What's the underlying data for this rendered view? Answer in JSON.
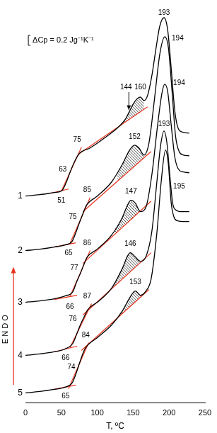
{
  "chart_data": {
    "type": "line",
    "x_label": "T, ºC",
    "y_label": "E N D O",
    "xlim": [
      0,
      250
    ],
    "xticks": [
      0,
      50,
      100,
      150,
      200,
      250
    ],
    "ylim": [
      0,
      565
    ],
    "tick_labels": "x",
    "grid": false,
    "tangent_color": "#e8341c",
    "scale_bar": {
      "text": "ΔCp = 0.2 Jg⁻¹K⁻¹",
      "x": 4,
      "y": [
        505,
        519
      ]
    },
    "series": [
      {
        "name": "1",
        "color": "#000000",
        "x": [
          0,
          20,
          40,
          51,
          57,
          63,
          69,
          75,
          90,
          110,
          130,
          140,
          144,
          150,
          155,
          160,
          165,
          170,
          176,
          182,
          187,
          193,
          198,
          203,
          208,
          213,
          220,
          228
        ],
        "values": [
          292,
          294,
          297,
          300,
          312,
          328,
          342,
          352,
          360,
          374,
          390,
          402,
          410,
          422,
          429,
          432,
          427,
          434,
          462,
          502,
          532,
          544,
          527,
          472,
          412,
          387,
          382,
          381
        ],
        "tangents": [
          [
            [
              35,
              296
            ],
            [
              60,
              302
            ]
          ],
          [
            [
              50,
              299
            ],
            [
              78,
              361
            ]
          ],
          [
            [
              75,
              352
            ],
            [
              170,
              418
            ]
          ]
        ],
        "hatch": [
          130,
          165
        ]
      },
      {
        "name": "2",
        "color": "#000000",
        "x": [
          0,
          20,
          40,
          55,
          65,
          70,
          75,
          80,
          85,
          100,
          120,
          135,
          145,
          152,
          158,
          165,
          172,
          180,
          187,
          194,
          199,
          204,
          209,
          214,
          220,
          228
        ],
        "values": [
          215,
          217,
          220,
          223,
          228,
          240,
          254,
          267,
          279,
          292,
          312,
          337,
          357,
          364,
          360,
          350,
          367,
          432,
          492,
          517,
          502,
          442,
          377,
          355,
          350,
          349
        ],
        "tangents": [
          [
            [
              40,
              220
            ],
            [
              70,
              226
            ]
          ],
          [
            [
              62,
              225
            ],
            [
              90,
              290
            ]
          ],
          [
            [
              80,
              270
            ],
            [
              175,
              355
            ]
          ]
        ],
        "hatch": [
          128,
          165
        ]
      },
      {
        "name": "3",
        "color": "#000000",
        "x": [
          0,
          20,
          40,
          55,
          66,
          71,
          77,
          82,
          86,
          100,
          120,
          135,
          142,
          147,
          153,
          160,
          168,
          176,
          184,
          190,
          194,
          198,
          203,
          208,
          213,
          220,
          228
        ],
        "values": [
          142,
          144,
          147,
          151,
          157,
          170,
          184,
          197,
          206,
          217,
          237,
          262,
          279,
          286,
          282,
          270,
          277,
          322,
          392,
          437,
          450,
          440,
          392,
          347,
          330,
          326,
          325
        ],
        "tangents": [
          [
            [
              40,
              146
            ],
            [
              72,
              152
            ]
          ],
          [
            [
              62,
              150
            ],
            [
              90,
              215
            ]
          ],
          [
            [
              80,
              197
            ],
            [
              175,
              285
            ]
          ]
        ],
        "hatch": [
          125,
          160
        ]
      },
      {
        "name": "4",
        "color": "#000000",
        "x": [
          0,
          20,
          40,
          55,
          66,
          71,
          76,
          82,
          87,
          100,
          120,
          135,
          142,
          146,
          152,
          160,
          168,
          176,
          183,
          188,
          193,
          197,
          201,
          205,
          210,
          218,
          228
        ],
        "values": [
          67,
          69,
          72,
          76,
          84,
          96,
          109,
          122,
          132,
          142,
          162,
          190,
          207,
          212,
          207,
          200,
          207,
          242,
          312,
          362,
          384,
          367,
          322,
          282,
          272,
          270,
          270
        ],
        "tangents": [
          [
            [
              40,
              72
            ],
            [
              72,
              80
            ]
          ],
          [
            [
              62,
              78
            ],
            [
              92,
              140
            ]
          ],
          [
            [
              80,
              124
            ],
            [
              175,
              212
            ]
          ]
        ],
        "hatch": [
          122,
          165
        ]
      },
      {
        "name": "5",
        "color": "#000000",
        "x": [
          0,
          20,
          40,
          55,
          65,
          70,
          74,
          79,
          84,
          100,
          120,
          135,
          145,
          153,
          160,
          167,
          175,
          183,
          189,
          195,
          199,
          203,
          207,
          212,
          220,
          228
        ],
        "values": [
          14,
          16,
          19,
          22,
          28,
          40,
          52,
          67,
          78,
          92,
          110,
          130,
          148,
          158,
          152,
          157,
          175,
          240,
          312,
          357,
          337,
          282,
          262,
          257,
          256,
          256
        ],
        "tangents": [
          [
            [
              40,
              19
            ],
            [
              70,
              25
            ]
          ],
          [
            [
              60,
              20
            ],
            [
              88,
              85
            ]
          ],
          [
            [
              78,
              74
            ],
            [
              172,
              160
            ]
          ]
        ],
        "hatch": [
          128,
          165
        ]
      }
    ],
    "annotations": [
      {
        "text": "193",
        "x": 193,
        "y": 551
      },
      {
        "text": "194",
        "x": 212,
        "y": 515
      },
      {
        "text": "194",
        "x": 214,
        "y": 452
      },
      {
        "text": "193",
        "x": 193,
        "y": 394
      },
      {
        "text": "195",
        "x": 214,
        "y": 305
      },
      {
        "text": "144",
        "x": 140,
        "y": 446,
        "arrow": [
          [
            144,
            439
          ],
          [
            144,
            414
          ]
        ]
      },
      {
        "text": "160",
        "x": 160,
        "y": 446
      },
      {
        "text": "152",
        "x": 152,
        "y": 376
      },
      {
        "text": "147",
        "x": 147,
        "y": 298
      },
      {
        "text": "146",
        "x": 146,
        "y": 224
      },
      {
        "text": "153",
        "x": 153,
        "y": 170
      },
      {
        "text": "51",
        "x": 50,
        "y": 285
      },
      {
        "text": "63",
        "x": 52,
        "y": 330
      },
      {
        "text": "75",
        "x": 72,
        "y": 372
      },
      {
        "text": "65",
        "x": 60,
        "y": 211
      },
      {
        "text": "75",
        "x": 66,
        "y": 262
      },
      {
        "text": "85",
        "x": 86,
        "y": 300
      },
      {
        "text": "66",
        "x": 62,
        "y": 135
      },
      {
        "text": "77",
        "x": 68,
        "y": 190
      },
      {
        "text": "86",
        "x": 86,
        "y": 225
      },
      {
        "text": "66",
        "x": 56,
        "y": 63
      },
      {
        "text": "76",
        "x": 66,
        "y": 118
      },
      {
        "text": "87",
        "x": 86,
        "y": 150
      },
      {
        "text": "65",
        "x": 56,
        "y": 9
      },
      {
        "text": "74",
        "x": 64,
        "y": 50
      },
      {
        "text": "84",
        "x": 84,
        "y": 95
      }
    ]
  }
}
